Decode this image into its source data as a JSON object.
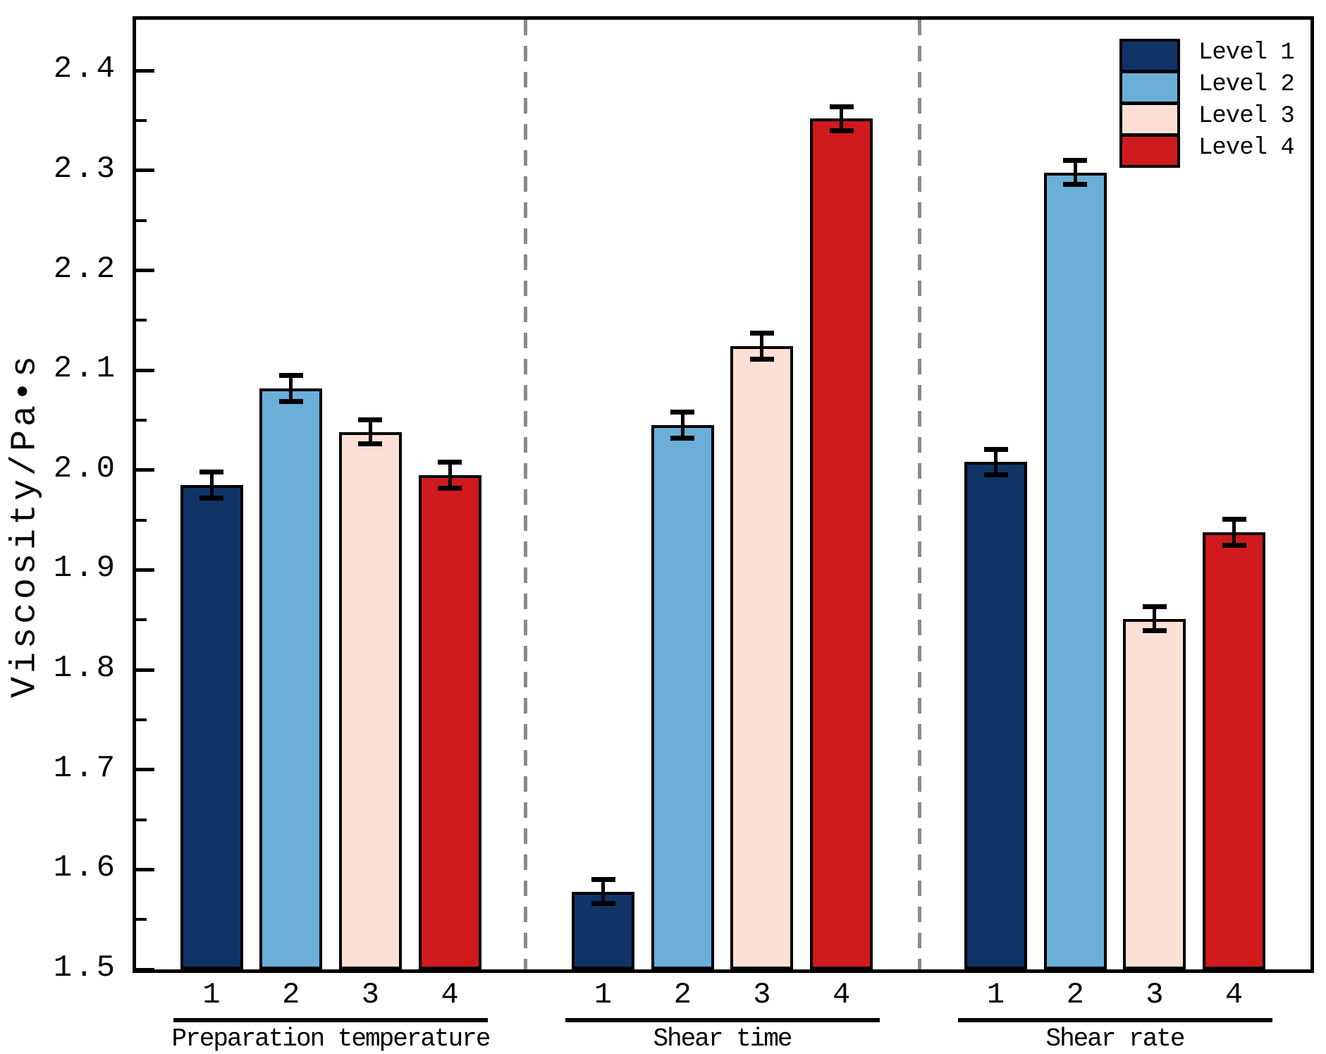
{
  "figure": {
    "ylabel": "Viscosity/Pa•s",
    "y_tick_labels": [
      "1.5",
      "1.6",
      "1.7",
      "1.8",
      "1.9",
      "2.0",
      "2.1",
      "2.2",
      "2.3",
      "2.4"
    ],
    "x_group_labels": [
      "Preparation temperature",
      "Shear time",
      "Shear rate"
    ],
    "legend_labels": [
      "Level 1",
      "Level 2",
      "Level 3",
      "Level 4"
    ]
  },
  "chart_data": {
    "type": "bar",
    "title": "",
    "xlabel": "",
    "ylabel": "Viscosity/Pa•s",
    "ylim": [
      1.5,
      2.451
    ],
    "y_major_tick_step": 0.1,
    "y_minor_tick_step": 0.05,
    "grid": false,
    "legend_position": "upper right",
    "legend": [
      "Level 1",
      "Level 2",
      "Level 3",
      "Level 4"
    ],
    "colors": [
      "#113467",
      "#6bafd9",
      "#fce0d5",
      "#cf1a1e"
    ],
    "bar_edge_color": "#000000",
    "error_bar_color": "#000000",
    "separator_color": "#8a8a8a",
    "groups": [
      {
        "label": "Preparation temperature",
        "categories": [
          "1",
          "2",
          "3",
          "4"
        ],
        "series": [
          "Level 1",
          "Level 2",
          "Level 3",
          "Level 4"
        ],
        "values": [
          1.985,
          2.082,
          2.038,
          1.995
        ],
        "errors": [
          0.013,
          0.013,
          0.012,
          0.013
        ]
      },
      {
        "label": "Shear time",
        "categories": [
          "1",
          "2",
          "3",
          "4"
        ],
        "series": [
          "Level 1",
          "Level 2",
          "Level 3",
          "Level 4"
        ],
        "values": [
          1.578,
          2.045,
          2.124,
          2.352
        ],
        "errors": [
          0.012,
          0.013,
          0.013,
          0.012
        ]
      },
      {
        "label": "Shear rate",
        "categories": [
          "1",
          "2",
          "3",
          "4"
        ],
        "series": [
          "Level 1",
          "Level 2",
          "Level 3",
          "Level 4"
        ],
        "values": [
          2.008,
          2.298,
          1.851,
          1.938
        ],
        "errors": [
          0.013,
          0.012,
          0.012,
          0.013
        ]
      }
    ]
  }
}
